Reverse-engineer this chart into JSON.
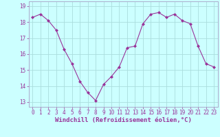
{
  "x": [
    0,
    1,
    2,
    3,
    4,
    5,
    6,
    7,
    8,
    9,
    10,
    11,
    12,
    13,
    14,
    15,
    16,
    17,
    18,
    19,
    20,
    21,
    22,
    23
  ],
  "y": [
    18.3,
    18.5,
    18.1,
    17.5,
    16.3,
    15.4,
    14.3,
    13.6,
    13.1,
    14.1,
    14.6,
    15.2,
    16.4,
    16.5,
    17.9,
    18.5,
    18.6,
    18.3,
    18.5,
    18.1,
    17.9,
    16.5,
    15.4,
    15.2
  ],
  "line_color": "#993399",
  "marker": "D",
  "marker_size": 2.0,
  "bg_color": "#ccffff",
  "grid_color": "#aadddd",
  "xlabel": "Windchill (Refroidissement éolien,°C)",
  "ylabel_ticks": [
    13,
    14,
    15,
    16,
    17,
    18,
    19
  ],
  "xtick_labels": [
    "0",
    "1",
    "2",
    "3",
    "4",
    "5",
    "6",
    "7",
    "8",
    "9",
    "10",
    "11",
    "12",
    "13",
    "14",
    "15",
    "16",
    "17",
    "18",
    "19",
    "20",
    "21",
    "22",
    "23"
  ],
  "xticks": [
    0,
    1,
    2,
    3,
    4,
    5,
    6,
    7,
    8,
    9,
    10,
    11,
    12,
    13,
    14,
    15,
    16,
    17,
    18,
    19,
    20,
    21,
    22,
    23
  ],
  "xlim": [
    -0.5,
    23.5
  ],
  "ylim": [
    12.7,
    19.3
  ],
  "tick_color": "#993399",
  "tick_fontsize": 5.5,
  "xlabel_fontsize": 6.5,
  "spine_color": "#aaaacc"
}
